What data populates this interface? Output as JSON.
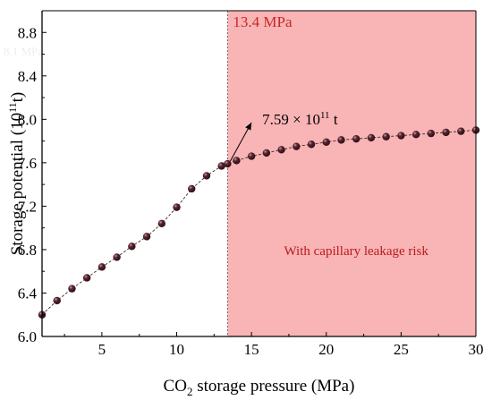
{
  "chart_data": {
    "type": "scatter",
    "title": "",
    "xlabel": {
      "prefix": "CO",
      "sub": "2",
      "suffix": " storage pressure (MPa)"
    },
    "ylabel": {
      "prefix": "Storage potential (10",
      "sup": "11",
      "suffix": "t)"
    },
    "xlim": [
      1,
      30
    ],
    "ylim": [
      6.0,
      9.0
    ],
    "x_ticks": [
      5,
      10,
      15,
      20,
      25,
      30
    ],
    "y_ticks": [
      6.0,
      6.4,
      6.8,
      7.2,
      7.6,
      8.0,
      8.4,
      8.8
    ],
    "x_tick_labels": [
      "5",
      "10",
      "15",
      "20",
      "25",
      "30"
    ],
    "y_tick_labels": [
      "6.0",
      "6.4",
      "6.8",
      "7.2",
      "7.6",
      "8.0",
      "8.4",
      "8.8"
    ],
    "grid": false,
    "series": [
      {
        "marker": "sphere",
        "line": "dashed",
        "color": "#2a0e14",
        "x": [
          1,
          2,
          3,
          4,
          5,
          6,
          7,
          8,
          9,
          10,
          11,
          12,
          13,
          13.4,
          14,
          15,
          16,
          17,
          18,
          19,
          20,
          21,
          22,
          23,
          24,
          25,
          26,
          27,
          28,
          29,
          30
        ],
        "y": [
          6.2,
          6.33,
          6.44,
          6.54,
          6.64,
          6.73,
          6.83,
          6.92,
          7.04,
          7.19,
          7.36,
          7.48,
          7.57,
          7.59,
          7.62,
          7.66,
          7.69,
          7.72,
          7.75,
          7.77,
          7.79,
          7.81,
          7.82,
          7.83,
          7.84,
          7.85,
          7.86,
          7.87,
          7.88,
          7.89,
          7.9
        ]
      }
    ],
    "shaded_region": {
      "x_from": 13.4,
      "x_to": 30,
      "color": "#f9b4b6",
      "label": "13.4 MPa",
      "label_color": "#c62828",
      "text": "With capillary leakage risk",
      "text_color": "#b71c1c"
    },
    "annotation": {
      "text_prefix": "7.59 × 10",
      "text_sup": "11",
      "text_suffix": " t",
      "arrow_from": [
        13.4,
        7.59
      ],
      "arrow_to": [
        15.0,
        7.97
      ]
    },
    "background_label": "8.1 MPa"
  }
}
